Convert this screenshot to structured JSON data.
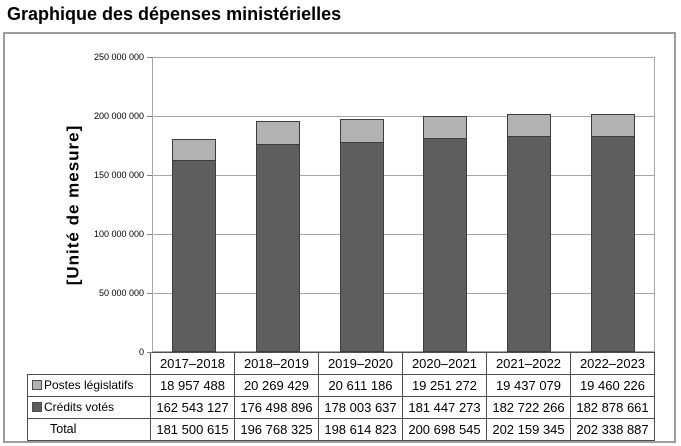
{
  "title": "Graphique des dépenses ministérielles",
  "chart_data": {
    "type": "bar",
    "stacked": true,
    "title": "Graphique des dépenses ministérielles",
    "xlabel": "",
    "ylabel": "[Unité de mesure]",
    "ylim": [
      0,
      250000000
    ],
    "grid": true,
    "legend_position": "table-left",
    "categories": [
      "2017–2018",
      "2018–2019",
      "2019–2020",
      "2020–2021",
      "2021–2022",
      "2022–2023"
    ],
    "series": [
      {
        "name": "Postes législatifs",
        "color": "#b2b2b2",
        "values": [
          18957488,
          20269429,
          20611186,
          19251272,
          19437079,
          19460226
        ]
      },
      {
        "name": "Crédits votés",
        "color": "#5e5e5e",
        "values": [
          162543127,
          176498896,
          178003637,
          181447273,
          182722266,
          182878661
        ]
      }
    ],
    "totals": [
      181500615,
      196768325,
      198614823,
      200698545,
      202159345,
      202338887
    ],
    "y_ticks": [
      {
        "value": 0,
        "label": "0"
      },
      {
        "value": 50000000,
        "label": "50 000 000"
      },
      {
        "value": 100000000,
        "label": "100 000 000"
      },
      {
        "value": 150000000,
        "label": "150 000 000"
      },
      {
        "value": 200000000,
        "label": "200 000 000"
      },
      {
        "value": 250000000,
        "label": "250 000 000"
      }
    ]
  },
  "table": {
    "years": [
      "2017–2018",
      "2018–2019",
      "2019–2020",
      "2020–2021",
      "2021–2022",
      "2022–2023"
    ],
    "rows": [
      {
        "label": "Postes législatifs",
        "values": [
          "18 957 488",
          "20 269 429",
          "20 611 186",
          "19 251 272",
          "19 437 079",
          "19 460 226"
        ]
      },
      {
        "label": "Crédits votés",
        "values": [
          "162 543 127",
          "176 498 896",
          "178 003 637",
          "181 447 273",
          "182 722 266",
          "182 878 661"
        ]
      },
      {
        "label": "Total",
        "values": [
          "181 500 615",
          "196 768 325",
          "198 614 823",
          "200 698 545",
          "202 159 345",
          "202 338 887"
        ]
      }
    ]
  },
  "colors": {
    "postes_legislatifs": "#b2b2b2",
    "credits_votes": "#5e5e5e",
    "bar_border": "#3d3d3d",
    "gridline": "#a6a6a6",
    "figure_border": "#9d9d9d",
    "table_border": "#4d4d4d"
  }
}
